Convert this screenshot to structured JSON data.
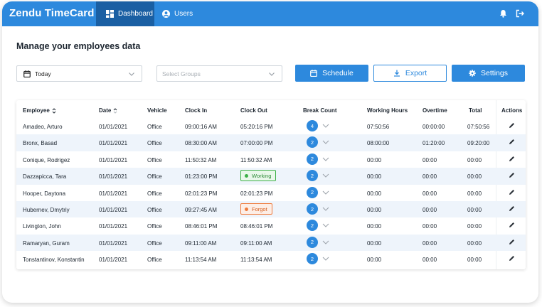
{
  "app": {
    "brand": "Zendu TimeCard"
  },
  "nav": {
    "dashboard": "Dashboard",
    "users": "Users"
  },
  "page": {
    "title": "Manage your employees data"
  },
  "filters": {
    "date_value": "Today",
    "groups_placeholder": "Select Groups"
  },
  "buttons": {
    "schedule": "Schedule",
    "export": "Export",
    "settings": "Settings"
  },
  "table": {
    "headers": {
      "employee": "Employee",
      "date": "Date",
      "vehicle": "Vehicle",
      "clock_in": "Clock In",
      "clock_out": "Clock Out",
      "break_count": "Break Count",
      "working_hours": "Working Hours",
      "overtime": "Overtime",
      "total": "Total",
      "actions": "Actions"
    },
    "rows": [
      {
        "employee": "Amadeo, Arturo",
        "date": "01/01/2021",
        "vehicle": "Office",
        "clock_in": "09:00:16 AM",
        "clock_out": "05:20:16 PM",
        "breaks": "4",
        "working_hours": "07:50:56",
        "overtime": "00:00:00",
        "total": "07:50:56"
      },
      {
        "employee": "Bronx, Basad",
        "date": "01/01/2021",
        "vehicle": "Office",
        "clock_in": "08:30:00 AM",
        "clock_out": "07:00:00 PM",
        "breaks": "2",
        "working_hours": "08:00:00",
        "overtime": "01:20:00",
        "total": "09:20:00"
      },
      {
        "employee": "Conique, Rodrigez",
        "date": "01/01/2021",
        "vehicle": "Office",
        "clock_in": "11:50:32 AM",
        "clock_out": "11:50:32 AM",
        "breaks": "2",
        "working_hours": "00:00",
        "overtime": "00:00",
        "total": "00:00"
      },
      {
        "employee": "Dazzapicca, Tara",
        "date": "01/01/2021",
        "vehicle": "Office",
        "clock_in": "01:23:00 PM",
        "clock_out": "Working",
        "breaks": "2",
        "working_hours": "00:00",
        "overtime": "00:00",
        "total": "00:00"
      },
      {
        "employee": "Hooper, Daytona",
        "date": "01/01/2021",
        "vehicle": "Office",
        "clock_in": "02:01:23 PM",
        "clock_out": "02:01:23 PM",
        "breaks": "2",
        "working_hours": "00:00",
        "overtime": "00:00",
        "total": "00:00"
      },
      {
        "employee": "Hubernev, Dmytriy",
        "date": "01/01/2021",
        "vehicle": "Office",
        "clock_in": "09:27:45 AM",
        "clock_out": "Forgot",
        "breaks": "2",
        "working_hours": "00:00",
        "overtime": "00:00",
        "total": "00:00"
      },
      {
        "employee": "Livington, John",
        "date": "01/01/2021",
        "vehicle": "Office",
        "clock_in": "08:46:01 PM",
        "clock_out": "08:46:01 PM",
        "breaks": "2",
        "working_hours": "00:00",
        "overtime": "00:00",
        "total": "00:00"
      },
      {
        "employee": "Ramaryan, Guram",
        "date": "01/01/2021",
        "vehicle": "Office",
        "clock_in": "09:11:00 AM",
        "clock_out": "09:11:00 AM",
        "breaks": "2",
        "working_hours": "00:00",
        "overtime": "00:00",
        "total": "00:00"
      },
      {
        "employee": "Tonstantinov, Konstantin",
        "date": "01/01/2021",
        "vehicle": "Office",
        "clock_in": "11:13:54 AM",
        "clock_out": "11:13:54 AM",
        "breaks": "2",
        "working_hours": "00:00",
        "overtime": "00:00",
        "total": "00:00"
      }
    ]
  },
  "icons": [
    "dashboard-icon",
    "user-icon",
    "bell-icon",
    "logout-icon",
    "calendar-icon",
    "chevron-down-icon",
    "download-icon",
    "gear-icon",
    "sort-icon",
    "edit-icon"
  ],
  "colors": {
    "primary": "#2d89dd",
    "nav_active": "#1a5fa3",
    "row_alt": "#eef4fb",
    "working": "#3cb047",
    "forgot": "#ef7a3a"
  }
}
